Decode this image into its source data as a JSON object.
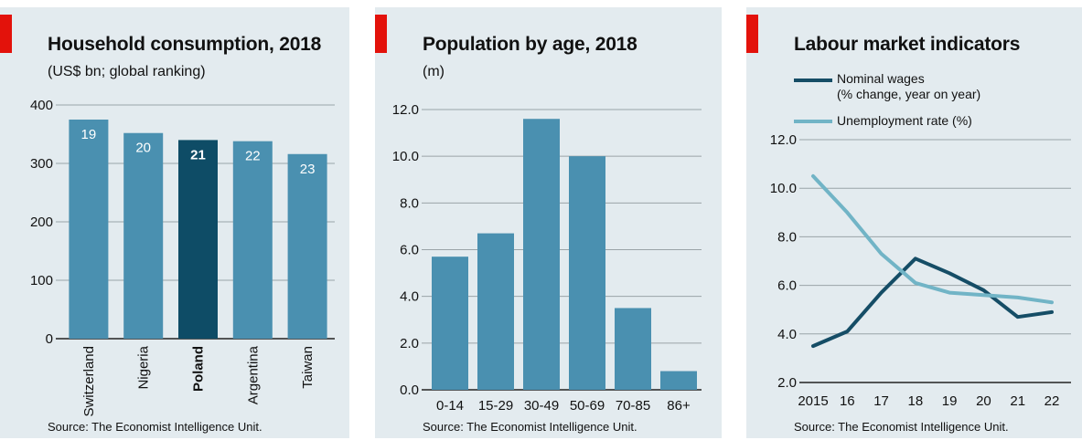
{
  "colors": {
    "panel_bg": "#e3ebef",
    "accent": "#e3120b",
    "bar": "#4a90b0",
    "bar_highlight": "#0e4c66",
    "wages_line": "#154d66",
    "unemployment_line": "#71b4c6",
    "grid": "#9aa4a8",
    "axis": "#222222"
  },
  "chart_data": [
    {
      "type": "bar",
      "title": "Household consumption, 2018",
      "subtitle": "(US$ bn; global ranking)",
      "categories": [
        "Switzerland",
        "Nigeria",
        "Poland",
        "Argentina",
        "Taiwan"
      ],
      "values": [
        375,
        352,
        340,
        338,
        316
      ],
      "data_labels": [
        "19",
        "20",
        "21",
        "22",
        "23"
      ],
      "highlight": "Poland",
      "yticks": [
        "400",
        "300",
        "200",
        "100",
        "0"
      ],
      "ylim": [
        0,
        400
      ],
      "grid": true,
      "source": "Source: The Economist Intelligence Unit."
    },
    {
      "type": "bar",
      "title": "Population by age, 2018",
      "subtitle": "(m)",
      "categories": [
        "0-14",
        "15-29",
        "30-49",
        "50-69",
        "70-85",
        "86+"
      ],
      "values": [
        5.7,
        6.7,
        11.6,
        10.0,
        3.5,
        0.8
      ],
      "yticks": [
        "12.0",
        "10.0",
        "8.0",
        "6.0",
        "4.0",
        "2.0",
        "0.0"
      ],
      "ylim": [
        0,
        12
      ],
      "grid": true,
      "source": "Source: The Economist Intelligence Unit."
    },
    {
      "type": "line",
      "title": "Labour market indicators",
      "x": [
        "2015",
        "16",
        "17",
        "18",
        "19",
        "20",
        "21",
        "22"
      ],
      "series": [
        {
          "name": "Nominal wages",
          "note": "(% change, year on year)",
          "values": [
            3.5,
            4.1,
            5.7,
            7.1,
            6.5,
            5.8,
            4.7,
            4.9
          ]
        },
        {
          "name": "Unemployment rate (%)",
          "values": [
            10.5,
            9.0,
            7.3,
            6.1,
            5.7,
            5.6,
            5.5,
            5.3
          ]
        }
      ],
      "yticks": [
        "12.0",
        "10.0",
        "8.0",
        "6.0",
        "4.0",
        "2.0"
      ],
      "ylim": [
        2,
        12
      ],
      "legend_placement": "top-left",
      "grid": true,
      "source": "Source: The Economist Intelligence Unit."
    }
  ]
}
